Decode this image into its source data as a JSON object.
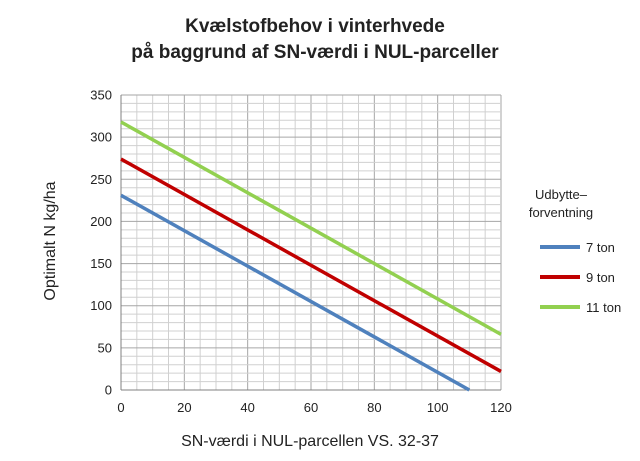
{
  "chart_data": {
    "type": "line",
    "title": [
      "Kvælstofbehov i vinterhvede",
      "på baggrund af SN-værdi i NUL-parceller"
    ],
    "xlabel": "SN-værdi i NUL-parcellen VS. 32-37",
    "ylabel": "Optimalt N kg/ha",
    "xlim": [
      0,
      120
    ],
    "ylim": [
      0,
      350
    ],
    "xticks": [
      0,
      20,
      40,
      60,
      80,
      100,
      120
    ],
    "yticks": [
      0,
      50,
      100,
      150,
      200,
      250,
      300,
      350
    ],
    "grid": true,
    "legend_title": "Udbytte–\nforventning",
    "legend_position": "right",
    "series": [
      {
        "name": "7 ton",
        "color": "#4f81bd",
        "x": [
          0,
          110
        ],
        "y": [
          231,
          0
        ]
      },
      {
        "name": "9 ton",
        "color": "#c00000",
        "x": [
          0,
          120
        ],
        "y": [
          274,
          22
        ]
      },
      {
        "name": "11 ton",
        "color": "#92d050",
        "x": [
          0,
          120
        ],
        "y": [
          318,
          66
        ]
      }
    ]
  }
}
